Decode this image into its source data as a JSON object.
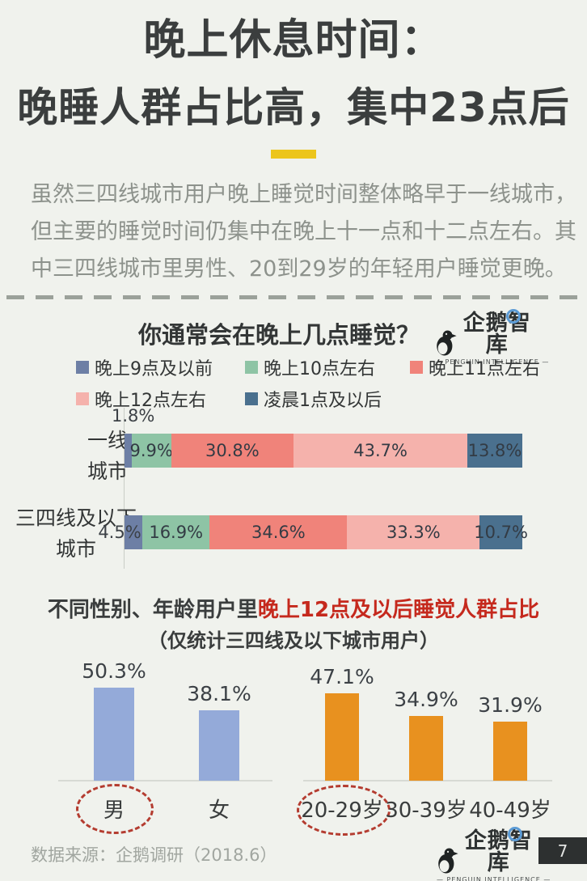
{
  "page": {
    "background": "#f0f2ed"
  },
  "header": {
    "title_line1": "晚上休息时间：",
    "title_line2": "晚睡人群占比高，集中23点后",
    "accent_color": "#ecc51c"
  },
  "intro": {
    "lines": [
      "虽然三四线城市用户晚上睡觉时间整体略早于一线城市，",
      "但主要的睡觉时间仍集中在晚上十一点和十二点左右。其",
      "中三四线城市里男性、20到29岁的年轻用户睡觉更晚。"
    ]
  },
  "logo": {
    "name": "企鹅智库",
    "subtitle": "— PENGUIN INTELLIGENCE —"
  },
  "chart_data": [
    {
      "type": "stacked-bar",
      "orientation": "horizontal",
      "title": "你通常会在晚上几点睡觉？",
      "unit": "%",
      "xlim": [
        0,
        100
      ],
      "legend_position": "top",
      "categories": [
        "一线城市",
        "三四线及以下城市"
      ],
      "row_labels": [
        [
          "一线",
          "城市"
        ],
        [
          "三四线及以下",
          "城市"
        ]
      ],
      "legend": [
        {
          "label": "晚上9点及以前",
          "color": "#6d7fa5"
        },
        {
          "label": "晚上10点左右",
          "color": "#8ec4a5"
        },
        {
          "label": "晚上11点左右",
          "color": "#f0837a"
        },
        {
          "label": "晚上12点左右",
          "color": "#f5b2ac"
        },
        {
          "label": "凌晨1点及以后",
          "color": "#4a708e"
        }
      ],
      "series": [
        {
          "name": "晚上9点及以前",
          "values": [
            1.8,
            4.5
          ]
        },
        {
          "name": "晚上10点左右",
          "values": [
            9.9,
            16.9
          ]
        },
        {
          "name": "晚上11点左右",
          "values": [
            30.8,
            34.6
          ]
        },
        {
          "name": "晚上12点左右",
          "values": [
            43.7,
            33.3
          ]
        },
        {
          "name": "凌晨1点及以后",
          "values": [
            13.8,
            10.7
          ]
        }
      ]
    },
    {
      "type": "bar",
      "title_prefix": "不同性别、年龄用户里",
      "title_highlight": "晚上12点及以后睡觉人群占比",
      "title_highlight_color": "#c5291d",
      "subtitle": "（仅统计三四线及以下城市用户）",
      "unit": "%",
      "ylim": [
        0,
        55
      ],
      "groups": [
        {
          "name": "性别",
          "bar_color": "#94aad9",
          "categories": [
            "男",
            "女"
          ],
          "values": [
            50.3,
            38.1
          ],
          "circled_category": "男"
        },
        {
          "name": "年龄",
          "bar_color": "#e8911f",
          "categories": [
            "20-29岁",
            "30-39岁",
            "40-49岁"
          ],
          "values": [
            47.1,
            34.9,
            31.9
          ],
          "circled_category": "20-29岁"
        }
      ]
    }
  ],
  "footer": {
    "source": "数据来源：企鹅调研（2018.6）",
    "page_number": "7"
  }
}
